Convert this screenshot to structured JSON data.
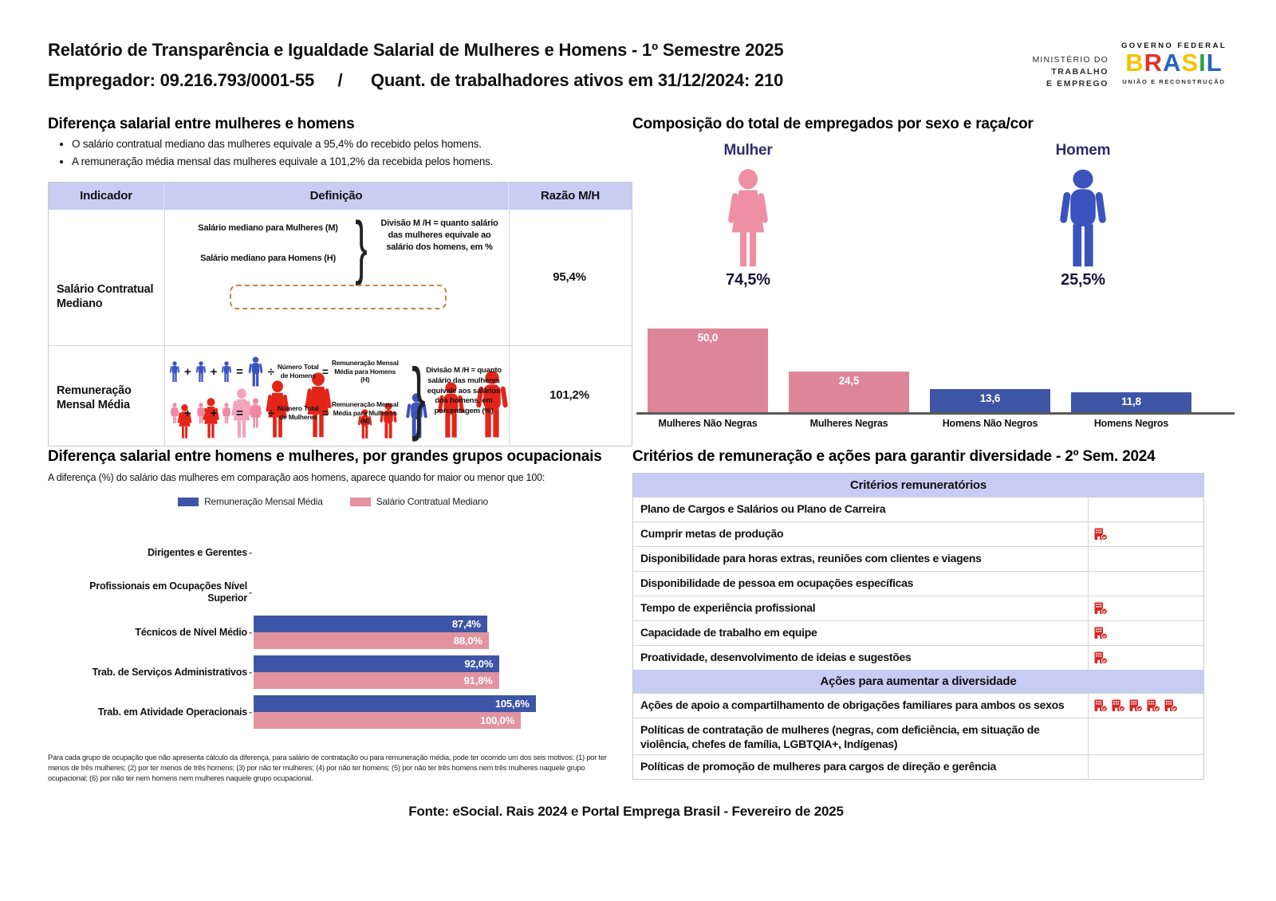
{
  "header": {
    "title": "Relatório de Transparência e Igualdade Salarial de Mulheres e Homens - 1º Semestre 2025",
    "subtitle": "Empregador: 09.216.793/0001-55     /      Quant. de trabalhadores ativos em 31/12/2024: 210",
    "ministry": [
      "MINISTÉRIO DO",
      "TRABALHO",
      "E EMPREGO"
    ],
    "gov_top": "GOVERNO FEDERAL",
    "gov_letters": [
      {
        "ch": "B",
        "color": "#f4c400"
      },
      {
        "ch": "R",
        "color": "#e5302b"
      },
      {
        "ch": "A",
        "color": "#2763c5"
      },
      {
        "ch": "S",
        "color": "#f4c400"
      },
      {
        "ch": "I",
        "color": "#2f9e44"
      },
      {
        "ch": "L",
        "color": "#2763c5"
      }
    ],
    "gov_bottom": "UNIÃO E RECONSTRUÇÃO"
  },
  "salary_diff": {
    "title": "Diferença salarial entre mulheres e homens",
    "bullets": [
      "O salário contratual mediano das mulheres equivale a 95,4% do recebido pelos homens.",
      "A remuneração média mensal das mulheres equivale a 101,2% da recebida pelos homens."
    ],
    "table": {
      "headers": [
        "Indicador",
        "Definição",
        "Razão M/H"
      ],
      "brace": "}",
      "operators": {
        "plus": "+",
        "equals": "=",
        "divide": "÷"
      },
      "row1": {
        "indicator": "Salário Contratual Mediano",
        "def_line1": "Salário mediano para Mulheres (M)",
        "def_line2": "Salário mediano para Homens (H)",
        "def_note": "Divisão M /H = quanto salário das mulheres equivale ao salário dos homens, em %",
        "ratio": "95,4%"
      },
      "row2": {
        "indicator": "Remuneração Mensal Média",
        "men_total_label": "Número Total de Homens",
        "men_result_label": "Remuneração Mensal Média para Homens (H)",
        "women_total_label": "Número Total de Mulheres",
        "women_result_label": "Remuneração Mensal Média para Mulheres (M)",
        "def_note": "Divisão M /H = quanto salário das mulheres equivale aos salários dos homens, em porcentagem (%)",
        "ratio": "101,2%"
      }
    }
  },
  "composition": {
    "title": "Composição do total de empregados por sexo e raça/cor",
    "female_label": "Mulher",
    "female_pct": "74,5%",
    "male_label": "Homem",
    "male_pct": "25,5%",
    "chart_data": {
      "type": "bar",
      "categories": [
        "Mulheres Não Negras",
        "Mulheres Negras",
        "Homens Não Negros",
        "Homens Negros"
      ],
      "values": [
        50.0,
        24.5,
        13.6,
        11.8
      ],
      "value_labels": [
        "50,0",
        "24,5",
        "13,6",
        "11,8"
      ],
      "colors": [
        "#dd8599",
        "#dd8599",
        "#3e55a6",
        "#3e55a6"
      ],
      "ylim": [
        0,
        52
      ],
      "grid": false
    }
  },
  "occupational": {
    "title": "Diferença salarial entre homens e mulheres, por grandes grupos ocupacionais",
    "subtitle": "A diferença (%) do salário das mulheres em comparação aos homens, aparece quando for maior ou menor que 100:",
    "legend": [
      {
        "label": "Remuneração Mensal Média",
        "color": "#3e55a6"
      },
      {
        "label": "Salário Contratual Mediano",
        "color": "#e2939f"
      }
    ],
    "chart_data": {
      "type": "bar",
      "orientation": "horizontal",
      "categories": [
        "Dirigentes e Gerentes",
        "Profissionais em Ocupações Nível Superior",
        "Técnicos de Nível Médio",
        "Trab. de Serviços Administrativos",
        "Trab. em Atividade Operacionais"
      ],
      "series": [
        {
          "name": "Remuneração Mensal Média",
          "color": "#3e55a6",
          "values": [
            null,
            null,
            87.4,
            92.0,
            105.6
          ],
          "value_labels": [
            null,
            null,
            "87,4%",
            "92,0%",
            "105,6%"
          ]
        },
        {
          "name": "Salário Contratual Mediano",
          "color": "#e2939f",
          "values": [
            null,
            null,
            88.0,
            91.8,
            100.0
          ],
          "value_labels": [
            null,
            null,
            "88,0%",
            "91,8%",
            "100,0%"
          ]
        }
      ],
      "xlim": [
        0,
        110
      ],
      "grid": false,
      "legend_position": "top"
    },
    "footnote": "Para cada grupo de ocupação que não apresenta cálculo da diferença, para salário de contratação ou para remuneração média, pode ter ocorrido um dos seis motivos: (1) por ter menos de três mulheres; (2) por ter menos de três homens; (3) por não ter mulheres; (4) por não ter homens; (5) por não ter três homens nem três mulheres naquele grupo ocupacional; (6) por não ter nem homens nem mulheres naquele grupo ocupacional."
  },
  "criteria": {
    "title": "Critérios de remuneração e ações para garantir diversidade - 2º Sem. 2024",
    "sections": [
      {
        "header": "Critérios remuneratórios",
        "rows": [
          {
            "label": "Plano de Cargos e Salários ou Plano de Carreira",
            "icons": 0
          },
          {
            "label": "Cumprir metas de produção",
            "icons": 1
          },
          {
            "label": "Disponibilidade para horas extras, reuniões com clientes e viagens",
            "icons": 0
          },
          {
            "label": "Disponibilidade de pessoa em ocupações específicas",
            "icons": 0
          },
          {
            "label": "Tempo de experiência profissional",
            "icons": 1
          },
          {
            "label": "Capacidade de trabalho em equipe",
            "icons": 1
          },
          {
            "label": "Proatividade, desenvolvimento de ideias e sugestões",
            "icons": 1
          }
        ]
      },
      {
        "header": "Ações para aumentar a diversidade",
        "rows": [
          {
            "label": "Ações de apoio a compartilhamento de obrigações familiares para ambos os sexos",
            "icons": 5
          },
          {
            "label": "Políticas de contratação de mulheres (negras, com deficiência, em situação de violência, chefes de família, LGBTQIA+, Indígenas)",
            "icons": 0
          },
          {
            "label": "Políticas de promoção de mulheres para cargos de direção e gerência",
            "icons": 0
          }
        ]
      }
    ]
  },
  "footer": "Fonte: eSocial. Rais 2024 e Portal Emprega Brasil - Fevereiro de 2025",
  "colors": {
    "female_pink": "#ef8fa3",
    "male_blue": "#3a53bd",
    "person_red": "#e32518",
    "bar_pink": "#dd8599",
    "bar_blue": "#3e55a6",
    "table_header_bg": "#c9cdf2",
    "navy_label": "#2e2c6d",
    "criteria_icon_red": "#d6251f"
  }
}
